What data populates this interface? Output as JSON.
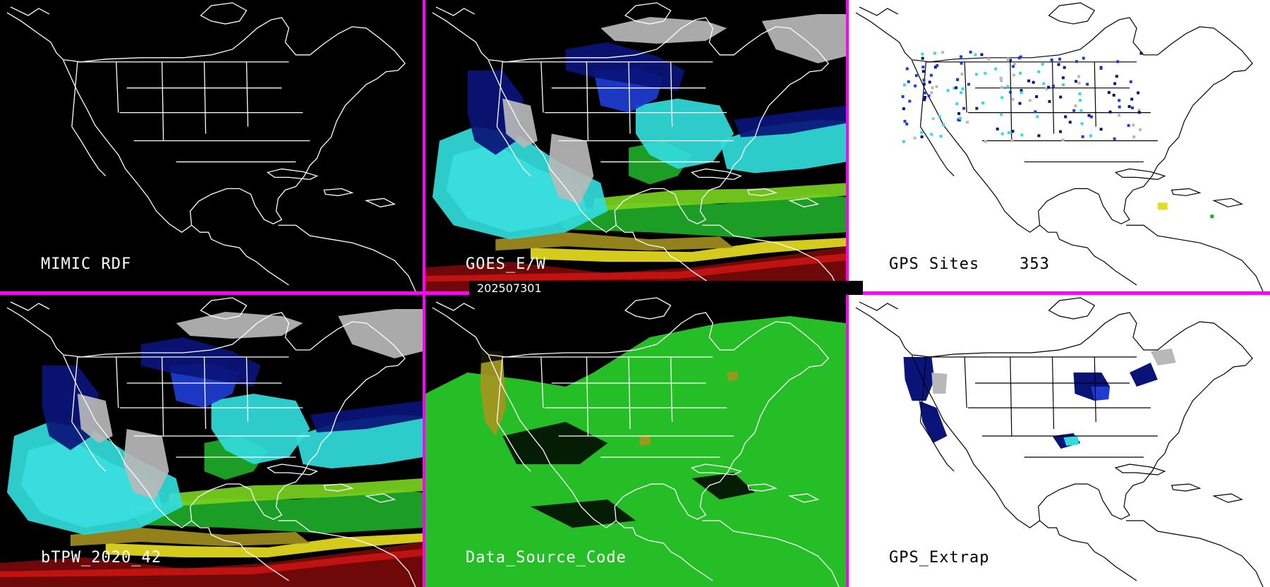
{
  "panels": [
    {
      "id": "mimic-rdf",
      "label": "MIMIC RDF",
      "background": "#000000"
    },
    {
      "id": "goes-ew",
      "label": "GOES_E/W",
      "background": "#000000"
    },
    {
      "id": "gps-sites",
      "label": "GPS Sites    353",
      "background": "#ffffff"
    },
    {
      "id": "btpw",
      "label": "bTPW_2020_42",
      "background": "#000000"
    },
    {
      "id": "data-source",
      "label": "Data_Source_Code",
      "background": "#000000"
    },
    {
      "id": "gps-extrap",
      "label": "GPS_Extrap",
      "background": "#ffffff"
    }
  ],
  "timestamp": "202507301",
  "colors": {
    "divider": "#ff00ff",
    "coastline_dark": "#ffffff",
    "coastline_light": "#000000",
    "tpw_low_gray": "#b8b8b8",
    "tpw_navy": "#0a1478",
    "tpw_blue": "#1e3cd2",
    "tpw_cyan": "#32dcdc",
    "tpw_lightcyan": "#9ef0f0",
    "tpw_green": "#1eaa28",
    "tpw_lime": "#78d21e",
    "tpw_yellow": "#e6dc1e",
    "tpw_olive": "#a08c1e",
    "tpw_red": "#c81414",
    "tpw_darkred": "#780a0a",
    "source_green": "#28c828",
    "source_olive": "#a0961e"
  }
}
